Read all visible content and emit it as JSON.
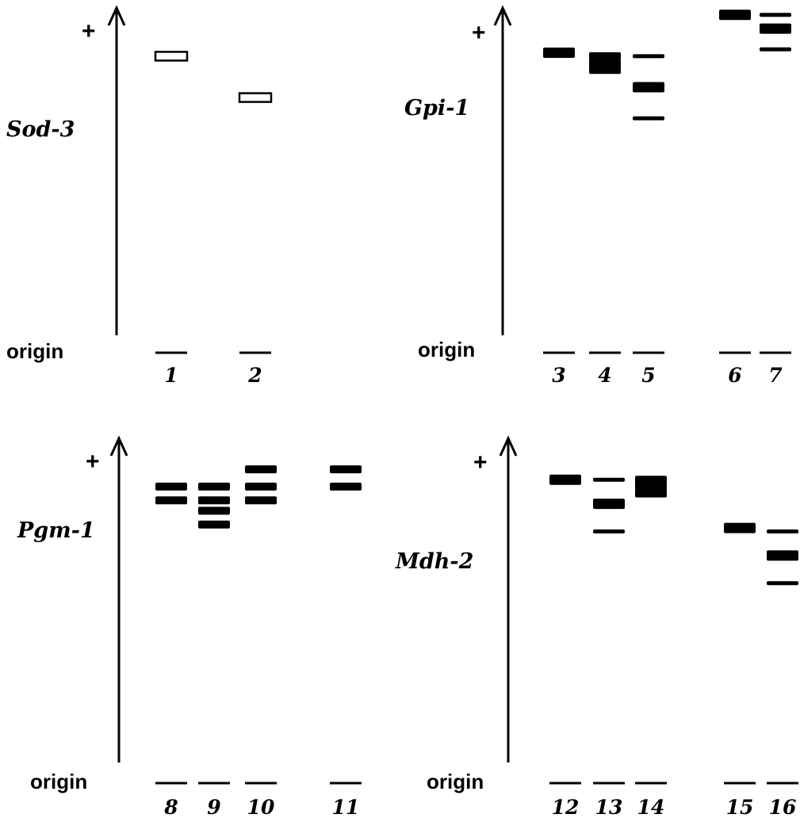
{
  "panels": [
    {
      "gene": "Sod-3",
      "plus": "+",
      "origin": "origin",
      "lanes": [
        {
          "label": "1",
          "bands": [
            {
              "level": 0.86,
              "style": "open",
              "weight": "thick"
            }
          ]
        },
        {
          "label": "2",
          "bands": [
            {
              "level": 0.74,
              "style": "open",
              "weight": "thick"
            }
          ]
        }
      ]
    },
    {
      "gene": "Gpi-1",
      "plus": "+",
      "origin": "origin",
      "lanes": [
        {
          "label": "3",
          "bands": [
            {
              "level": 0.87,
              "style": "solid",
              "weight": "thick"
            }
          ]
        },
        {
          "label": "4",
          "bands": [
            {
              "level": 0.86,
              "style": "solid",
              "weight": "medium"
            },
            {
              "level": 0.84,
              "style": "solid",
              "weight": "medium"
            },
            {
              "level": 0.82,
              "style": "solid",
              "weight": "medium"
            }
          ]
        },
        {
          "label": "5",
          "bands": [
            {
              "level": 0.86,
              "style": "solid",
              "weight": "thin"
            },
            {
              "level": 0.77,
              "style": "solid",
              "weight": "thick"
            },
            {
              "level": 0.68,
              "style": "solid",
              "weight": "thin"
            }
          ]
        },
        {
          "label": "6",
          "bands": [
            {
              "level": 0.98,
              "style": "solid",
              "weight": "thick"
            }
          ]
        },
        {
          "label": "7",
          "bands": [
            {
              "level": 0.98,
              "style": "solid",
              "weight": "thin"
            },
            {
              "level": 0.94,
              "style": "solid",
              "weight": "thick"
            },
            {
              "level": 0.88,
              "style": "solid",
              "weight": "thin"
            }
          ]
        }
      ]
    },
    {
      "gene": "Pgm-1",
      "plus": "+",
      "origin": "origin",
      "lanes": [
        {
          "label": "8",
          "bands": [
            {
              "level": 0.86,
              "style": "solid",
              "weight": "medium"
            },
            {
              "level": 0.82,
              "style": "solid",
              "weight": "medium"
            }
          ]
        },
        {
          "label": "9",
          "bands": [
            {
              "level": 0.86,
              "style": "solid",
              "weight": "medium"
            },
            {
              "level": 0.82,
              "style": "solid",
              "weight": "medium"
            },
            {
              "level": 0.79,
              "style": "solid",
              "weight": "medium"
            },
            {
              "level": 0.75,
              "style": "solid",
              "weight": "medium"
            }
          ]
        },
        {
          "label": "10",
          "bands": [
            {
              "level": 0.91,
              "style": "solid",
              "weight": "medium"
            },
            {
              "level": 0.86,
              "style": "solid",
              "weight": "medium"
            },
            {
              "level": 0.82,
              "style": "solid",
              "weight": "medium"
            }
          ]
        },
        {
          "label": "11",
          "bands": [
            {
              "level": 0.91,
              "style": "solid",
              "weight": "medium"
            },
            {
              "level": 0.86,
              "style": "solid",
              "weight": "medium"
            }
          ]
        }
      ]
    },
    {
      "gene": "Mdh-2",
      "plus": "+",
      "origin": "origin",
      "lanes": [
        {
          "label": "12",
          "bands": [
            {
              "level": 0.88,
              "style": "solid",
              "weight": "thick"
            }
          ]
        },
        {
          "label": "13",
          "bands": [
            {
              "level": 0.88,
              "style": "solid",
              "weight": "thin"
            },
            {
              "level": 0.81,
              "style": "solid",
              "weight": "thick"
            },
            {
              "level": 0.73,
              "style": "solid",
              "weight": "thin"
            }
          ]
        },
        {
          "label": "14",
          "bands": [
            {
              "level": 0.88,
              "style": "solid",
              "weight": "medium"
            },
            {
              "level": 0.86,
              "style": "solid",
              "weight": "medium"
            },
            {
              "level": 0.84,
              "style": "solid",
              "weight": "medium"
            }
          ]
        },
        {
          "label": "15",
          "bands": [
            {
              "level": 0.74,
              "style": "solid",
              "weight": "thick"
            }
          ]
        },
        {
          "label": "16",
          "bands": [
            {
              "level": 0.73,
              "style": "solid",
              "weight": "thin"
            },
            {
              "level": 0.66,
              "style": "solid",
              "weight": "thick"
            },
            {
              "level": 0.58,
              "style": "solid",
              "weight": "thin"
            }
          ]
        }
      ]
    }
  ]
}
